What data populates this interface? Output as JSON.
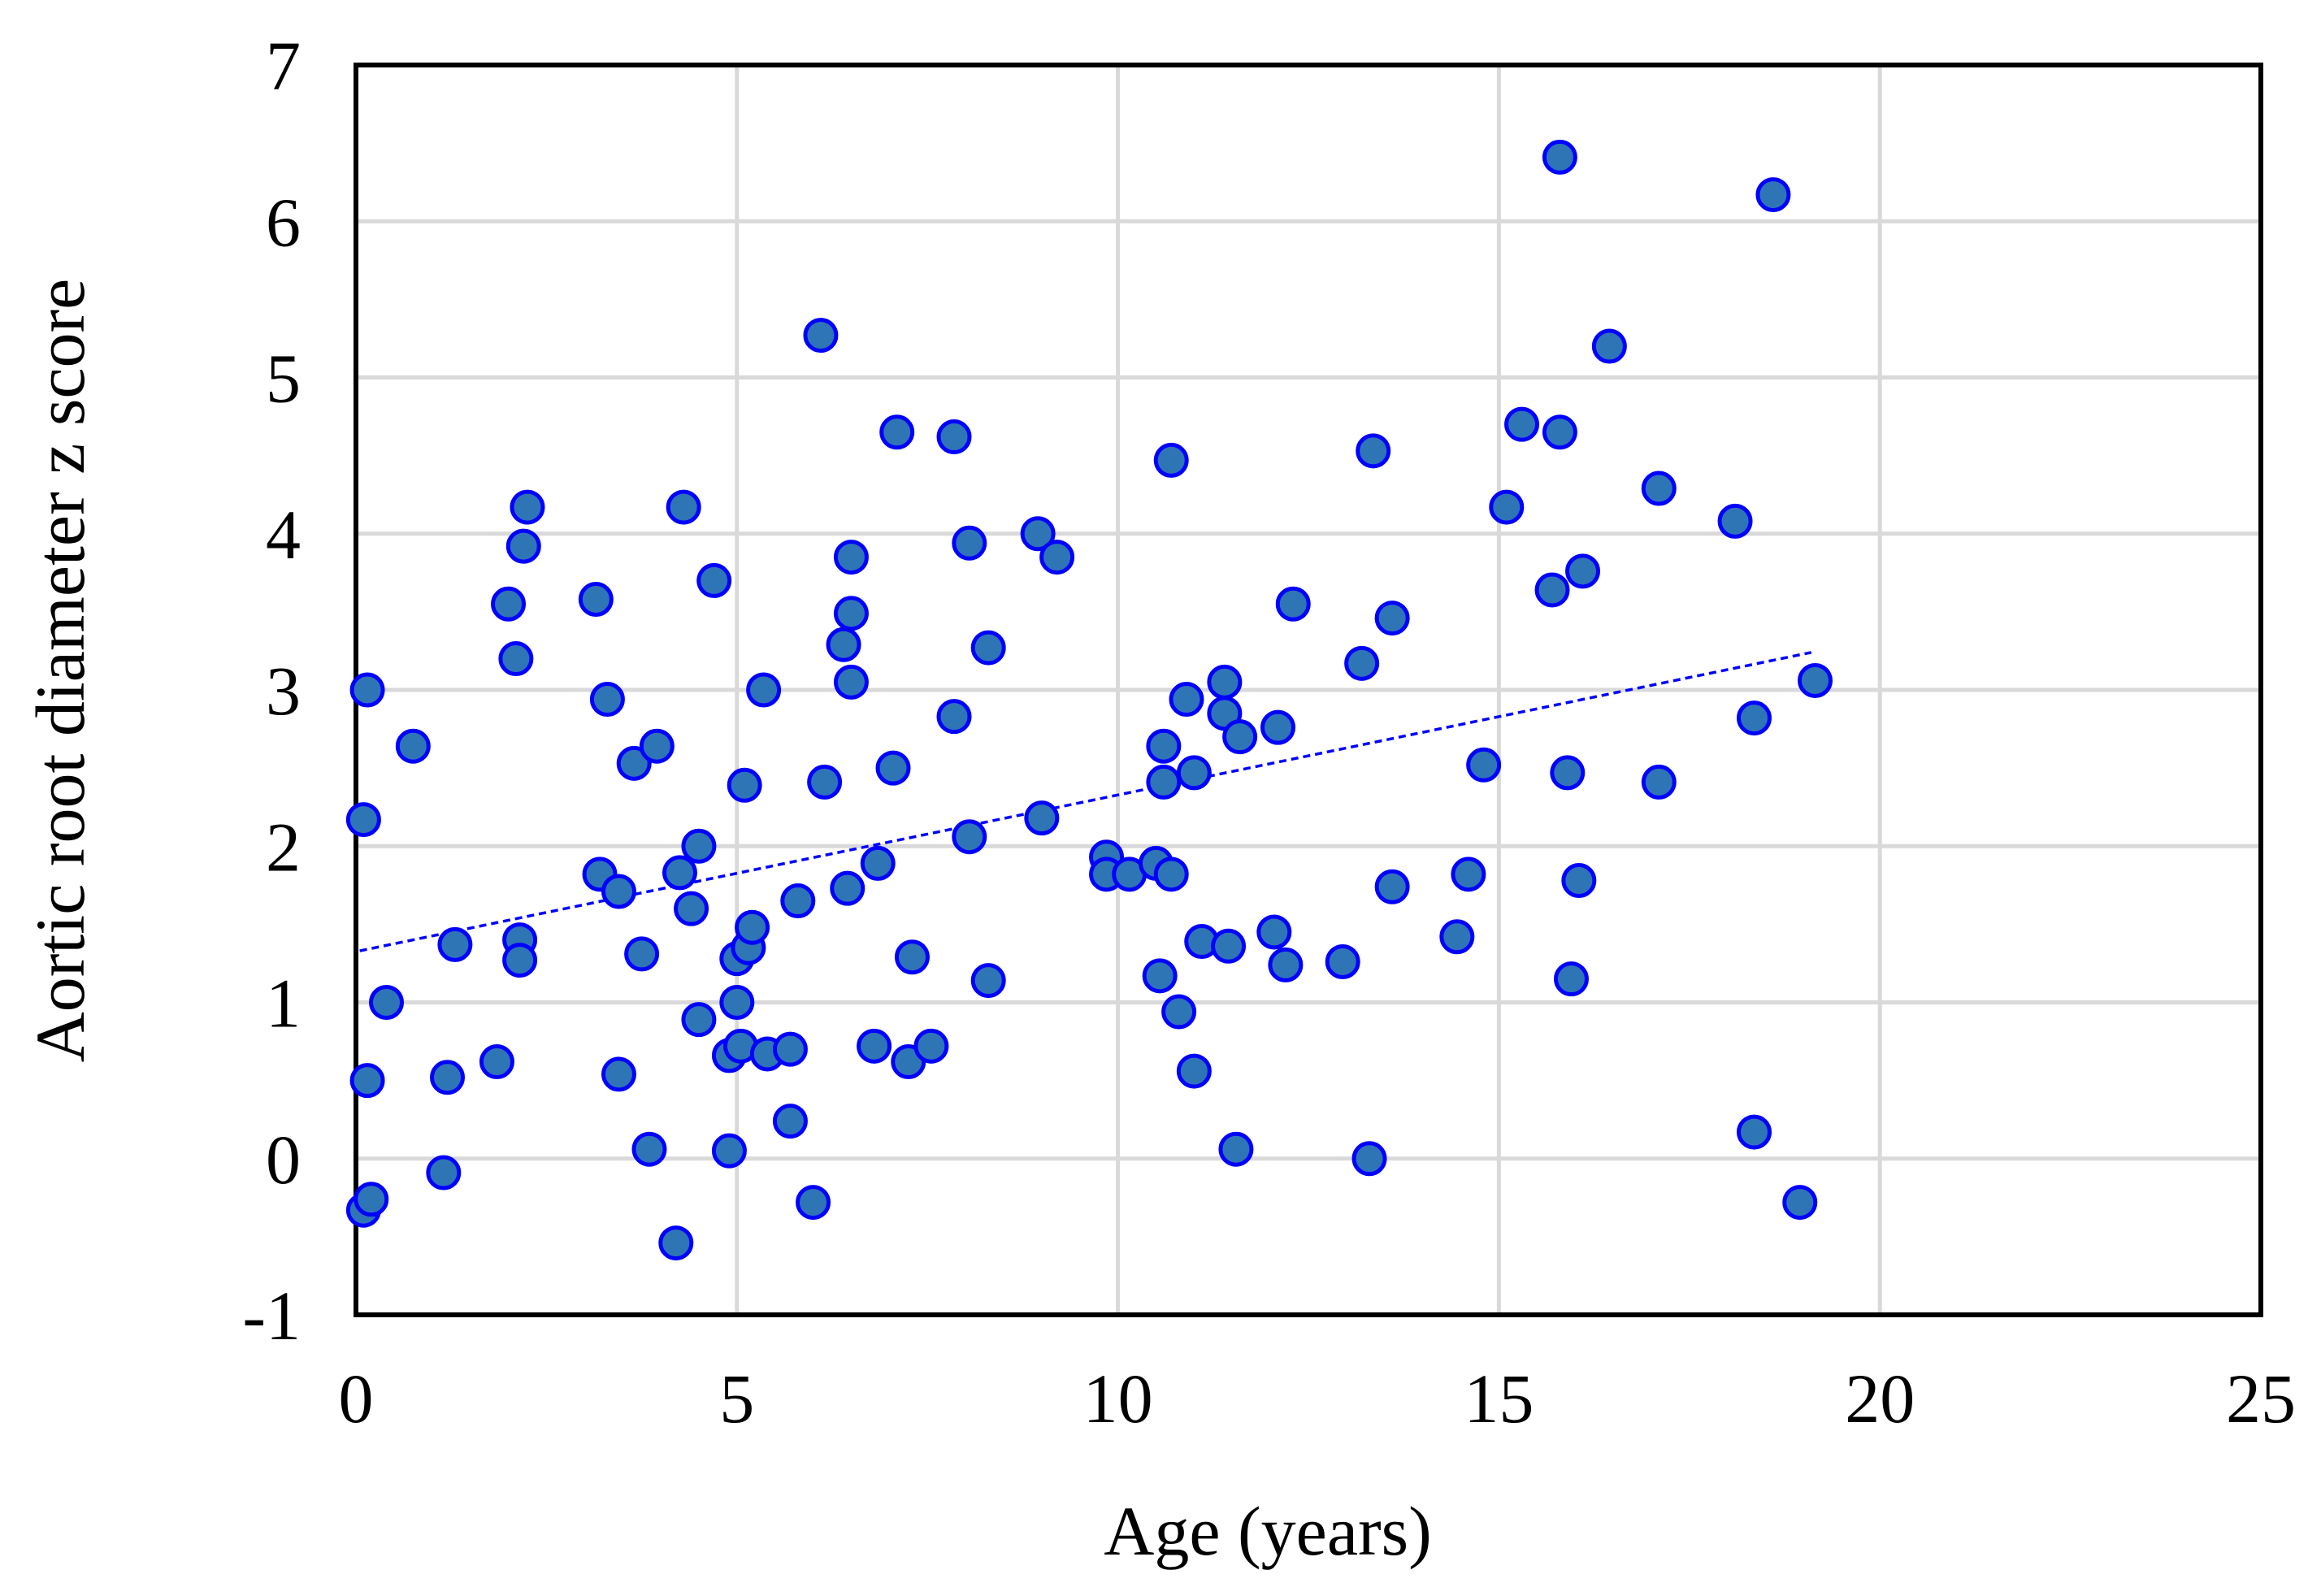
{
  "chart_data": {
    "type": "scatter",
    "title": "",
    "xlabel": "Age (years)",
    "ylabel": "Aortic root diameter z score",
    "xlim": [
      0,
      25
    ],
    "ylim": [
      -1,
      7
    ],
    "x_ticks": [
      0,
      5,
      10,
      15,
      20,
      25
    ],
    "y_ticks": [
      -1,
      0,
      1,
      2,
      3,
      4,
      5,
      6,
      7
    ],
    "x_tick_labels": [
      "0",
      "5",
      "10",
      "15",
      "20",
      "25"
    ],
    "y_tick_labels": [
      "-1",
      "0",
      "1",
      "2",
      "3",
      "4",
      "5",
      "6",
      "7"
    ],
    "grid": true,
    "legend": "none",
    "colors": {
      "marker_fill": "#2e75b6",
      "marker_edge": "#0000ff",
      "trendline": "#0000ff",
      "grid": "#d9d9d9",
      "frame": "#000000"
    },
    "trendline": {
      "type": "linear",
      "x": [
        0.05,
        19.1
      ],
      "y": [
        1.33,
        3.24
      ]
    },
    "series": [
      {
        "points": [
          [
            0.1,
            -0.33
          ],
          [
            0.15,
            0.5
          ],
          [
            0.2,
            -0.26
          ],
          [
            0.1,
            2.17
          ],
          [
            0.15,
            3.0
          ],
          [
            0.4,
            1.0
          ],
          [
            0.75,
            2.64
          ],
          [
            1.15,
            -0.09
          ],
          [
            1.2,
            0.52
          ],
          [
            1.3,
            1.37
          ],
          [
            1.85,
            0.62
          ],
          [
            2.0,
            3.55
          ],
          [
            2.1,
            3.2
          ],
          [
            2.15,
            1.4
          ],
          [
            2.15,
            1.27
          ],
          [
            2.2,
            3.92
          ],
          [
            2.25,
            4.17
          ],
          [
            3.15,
            3.58
          ],
          [
            3.2,
            1.82
          ],
          [
            3.3,
            2.94
          ],
          [
            3.45,
            1.71
          ],
          [
            3.45,
            0.54
          ],
          [
            3.65,
            2.53
          ],
          [
            3.75,
            1.31
          ],
          [
            3.85,
            0.06
          ],
          [
            3.95,
            2.64
          ],
          [
            4.25,
            1.83
          ],
          [
            4.3,
            4.17
          ],
          [
            4.2,
            -0.54
          ],
          [
            4.4,
            1.6
          ],
          [
            4.5,
            2.0
          ],
          [
            4.5,
            0.89
          ],
          [
            4.7,
            3.7
          ],
          [
            4.9,
            0.05
          ],
          [
            4.9,
            0.66
          ],
          [
            5.0,
            1.0
          ],
          [
            5.0,
            1.28
          ],
          [
            5.05,
            0.72
          ],
          [
            5.1,
            2.39
          ],
          [
            5.15,
            1.35
          ],
          [
            5.2,
            1.48
          ],
          [
            5.35,
            3.0
          ],
          [
            5.4,
            0.67
          ],
          [
            5.7,
            0.7
          ],
          [
            5.7,
            0.24
          ],
          [
            5.8,
            1.65
          ],
          [
            6.0,
            -0.28
          ],
          [
            6.1,
            5.27
          ],
          [
            6.15,
            2.41
          ],
          [
            6.4,
            3.29
          ],
          [
            6.45,
            1.73
          ],
          [
            6.5,
            3.49
          ],
          [
            6.5,
            3.05
          ],
          [
            6.5,
            3.85
          ],
          [
            6.85,
            1.89
          ],
          [
            6.8,
            0.72
          ],
          [
            7.05,
            2.5
          ],
          [
            7.1,
            4.65
          ],
          [
            7.25,
            0.62
          ],
          [
            7.3,
            1.29
          ],
          [
            7.55,
            0.72
          ],
          [
            7.85,
            4.62
          ],
          [
            7.85,
            2.83
          ],
          [
            8.05,
            3.94
          ],
          [
            8.05,
            2.06
          ],
          [
            8.3,
            3.27
          ],
          [
            8.3,
            1.14
          ],
          [
            8.95,
            4.0
          ],
          [
            9.0,
            2.18
          ],
          [
            9.2,
            3.85
          ],
          [
            9.85,
            1.93
          ],
          [
            9.85,
            1.82
          ],
          [
            10.15,
            1.82
          ],
          [
            10.5,
            1.89
          ],
          [
            10.55,
            1.17
          ],
          [
            10.6,
            2.64
          ],
          [
            10.6,
            2.41
          ],
          [
            10.7,
            1.82
          ],
          [
            10.7,
            4.47
          ],
          [
            10.8,
            0.94
          ],
          [
            10.9,
            2.94
          ],
          [
            11.0,
            2.47
          ],
          [
            11.0,
            0.56
          ],
          [
            11.1,
            1.39
          ],
          [
            11.4,
            3.05
          ],
          [
            11.4,
            2.85
          ],
          [
            11.45,
            1.36
          ],
          [
            11.55,
            0.06
          ],
          [
            11.6,
            2.7
          ],
          [
            12.05,
            1.45
          ],
          [
            12.1,
            2.76
          ],
          [
            12.2,
            1.24
          ],
          [
            12.3,
            3.55
          ],
          [
            12.95,
            1.26
          ],
          [
            13.2,
            3.17
          ],
          [
            13.3,
            0.0
          ],
          [
            13.35,
            4.53
          ],
          [
            13.6,
            3.46
          ],
          [
            13.6,
            1.74
          ],
          [
            14.45,
            1.42
          ],
          [
            14.6,
            1.82
          ],
          [
            14.8,
            2.52
          ],
          [
            15.1,
            4.17
          ],
          [
            15.3,
            4.7
          ],
          [
            15.7,
            3.64
          ],
          [
            15.8,
            6.41
          ],
          [
            15.8,
            4.65
          ],
          [
            15.9,
            2.47
          ],
          [
            15.95,
            1.15
          ],
          [
            16.05,
            1.78
          ],
          [
            16.1,
            3.76
          ],
          [
            16.45,
            5.2
          ],
          [
            17.1,
            4.29
          ],
          [
            17.1,
            2.41
          ],
          [
            18.1,
            4.08
          ],
          [
            18.35,
            0.17
          ],
          [
            18.35,
            2.82
          ],
          [
            18.6,
            6.17
          ],
          [
            18.95,
            -0.28
          ],
          [
            19.15,
            3.06
          ]
        ]
      }
    ]
  }
}
